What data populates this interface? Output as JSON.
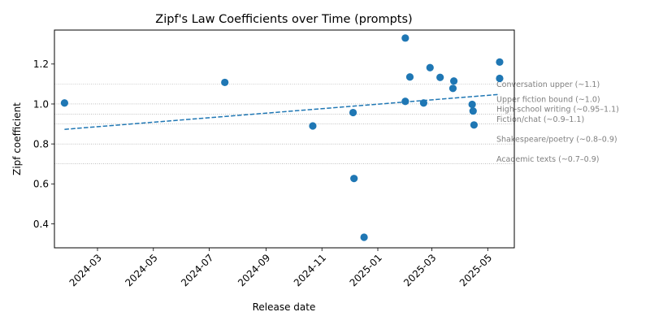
{
  "chart_data": {
    "type": "scatter",
    "title": "Zipf's Law Coefficients over Time (prompts)",
    "xlabel": "Release date",
    "ylabel": "Zipf coefficient",
    "x_axis": {
      "scale": "date",
      "range": [
        "2024-01-14",
        "2025-05-30"
      ],
      "ticks": [
        "2024-03",
        "2024-05",
        "2024-07",
        "2024-09",
        "2024-11",
        "2025-01",
        "2025-03",
        "2025-05"
      ],
      "tick_rotation_deg": 45
    },
    "y_axis": {
      "range": [
        0.28,
        1.37
      ],
      "ticks": [
        0.4,
        0.6,
        0.8,
        1.0,
        1.2
      ],
      "tick_labels": [
        "0.4",
        "0.6",
        "0.8",
        "1.0",
        "1.2"
      ]
    },
    "grid": false,
    "marker_color": "#1f77b4",
    "points": [
      {
        "x": "2024-01-25",
        "y": 1.005
      },
      {
        "x": "2024-07-18",
        "y": 1.108
      },
      {
        "x": "2024-10-22",
        "y": 0.89
      },
      {
        "x": "2024-12-05",
        "y": 0.957
      },
      {
        "x": "2024-12-06",
        "y": 0.627
      },
      {
        "x": "2024-12-17",
        "y": 0.333
      },
      {
        "x": "2025-01-31",
        "y": 1.013
      },
      {
        "x": "2025-01-31",
        "y": 1.33
      },
      {
        "x": "2025-02-05",
        "y": 1.135
      },
      {
        "x": "2025-02-20",
        "y": 1.005
      },
      {
        "x": "2025-02-27",
        "y": 1.182
      },
      {
        "x": "2025-03-10",
        "y": 1.133
      },
      {
        "x": "2025-03-24",
        "y": 1.078
      },
      {
        "x": "2025-03-25",
        "y": 1.115
      },
      {
        "x": "2025-04-14",
        "y": 0.998
      },
      {
        "x": "2025-04-15",
        "y": 0.965
      },
      {
        "x": "2025-04-16",
        "y": 0.895
      },
      {
        "x": "2025-05-14",
        "y": 1.21
      },
      {
        "x": "2025-05-14",
        "y": 1.128
      }
    ],
    "trend_line": {
      "style": "dashed",
      "color": "#1f77b4",
      "start": {
        "x": "2024-01-25",
        "y": 0.873
      },
      "end": {
        "x": "2025-05-14",
        "y": 1.048
      }
    },
    "reference_lines": [
      {
        "y": 1.1,
        "label": "Conversation upper (~1.1)",
        "label_y": 1.1
      },
      {
        "y": 1.0,
        "label": "Upper fiction bound (~1.0)",
        "label_y": 1.025
      },
      {
        "y": 0.95,
        "label": "High-school writing (~0.95–1.1)",
        "label_y": 0.975
      },
      {
        "y": 0.9,
        "label": "Fiction/chat (~0.9–1.1)",
        "label_y": 0.925
      },
      {
        "y": 0.8,
        "label": "Shakespeare/poetry (~0.8–0.9)",
        "label_y": 0.825
      },
      {
        "y": 0.7,
        "label": "Academic texts (~0.7–0.9)",
        "label_y": 0.725
      }
    ],
    "reference_color": "#999999"
  }
}
